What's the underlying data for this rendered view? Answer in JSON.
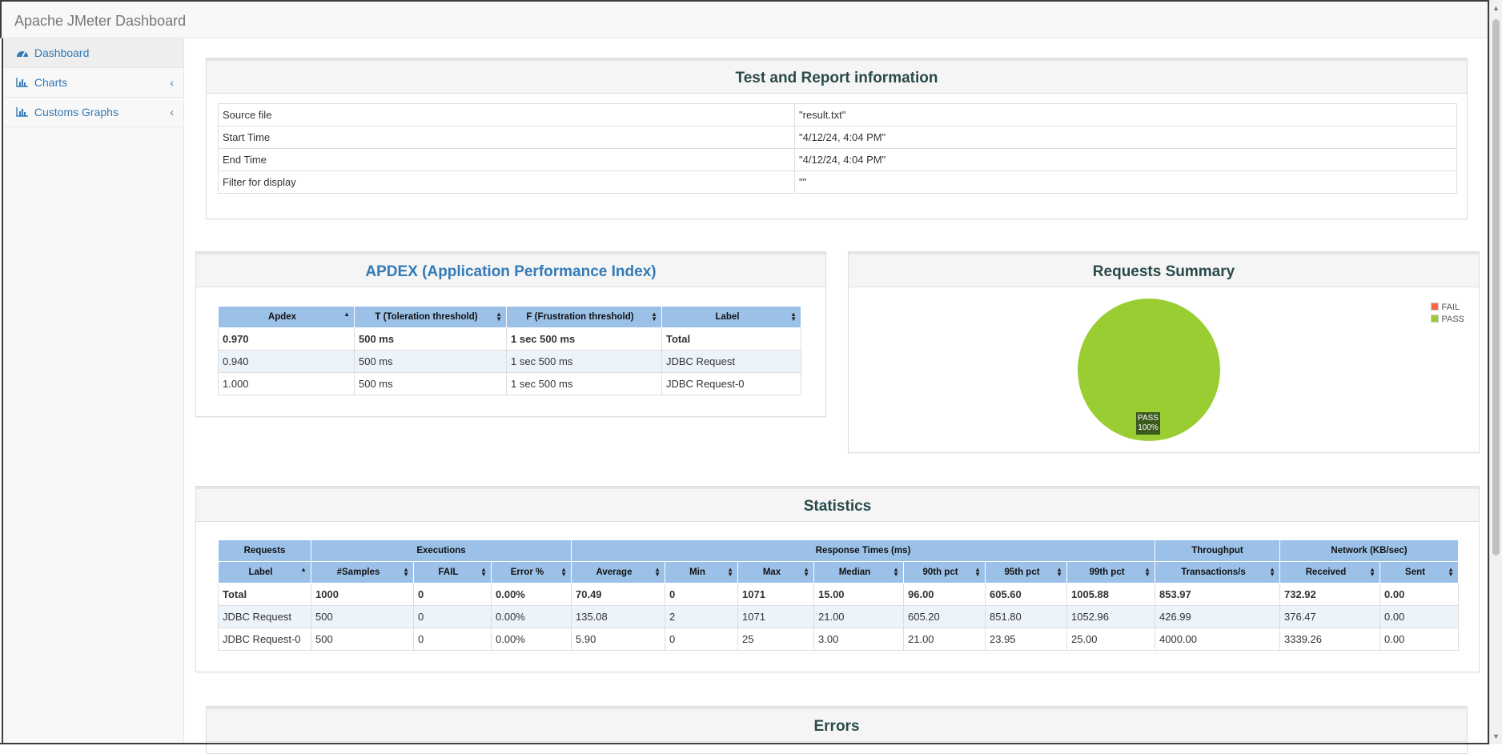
{
  "app": {
    "brand": "Apache JMeter Dashboard"
  },
  "sidebar": {
    "items": [
      {
        "label": "Dashboard",
        "icon": "dashboard-icon",
        "active": true
      },
      {
        "label": "Charts",
        "icon": "bar-chart-icon",
        "chevron": "‹"
      },
      {
        "label": "Customs Graphs",
        "icon": "bar-chart-icon",
        "chevron": "‹"
      }
    ]
  },
  "test_info": {
    "title": "Test and Report information",
    "rows": [
      {
        "key": "Source file",
        "value": "\"result.txt\""
      },
      {
        "key": "Start Time",
        "value": "\"4/12/24, 4:04 PM\""
      },
      {
        "key": "End Time",
        "value": "\"4/12/24, 4:04 PM\""
      },
      {
        "key": "Filter for display",
        "value": "\"\""
      }
    ]
  },
  "apdex": {
    "title": "APDEX (Application Performance Index)",
    "headers": [
      "Apdex",
      "T (Toleration threshold)",
      "F (Frustration threshold)",
      "Label"
    ],
    "rows": [
      [
        "0.970",
        "500 ms",
        "1 sec 500 ms",
        "Total"
      ],
      [
        "0.940",
        "500 ms",
        "1 sec 500 ms",
        "JDBC Request"
      ],
      [
        "1.000",
        "500 ms",
        "1 sec 500 ms",
        "JDBC Request-0"
      ]
    ]
  },
  "summary": {
    "title": "Requests Summary",
    "legend": [
      {
        "label": "FAIL",
        "color": "#ff6347"
      },
      {
        "label": "PASS",
        "color": "#9acd32"
      }
    ],
    "pie_label_name": "PASS",
    "pie_label_pct": "100%",
    "pass_fraction": 1.0
  },
  "statistics": {
    "title": "Statistics",
    "groups": [
      "Requests",
      "Executions",
      "Response Times (ms)",
      "Throughput",
      "Network (KB/sec)"
    ],
    "headers": [
      "Label",
      "#Samples",
      "FAIL",
      "Error %",
      "Average",
      "Min",
      "Max",
      "Median",
      "90th pct",
      "95th pct",
      "99th pct",
      "Transactions/s",
      "Received",
      "Sent"
    ],
    "rows": [
      [
        "Total",
        "1000",
        "0",
        "0.00%",
        "70.49",
        "0",
        "1071",
        "15.00",
        "96.00",
        "605.60",
        "1005.88",
        "853.97",
        "732.92",
        "0.00"
      ],
      [
        "JDBC Request",
        "500",
        "0",
        "0.00%",
        "135.08",
        "2",
        "1071",
        "21.00",
        "605.20",
        "851.80",
        "1052.96",
        "426.99",
        "376.47",
        "0.00"
      ],
      [
        "JDBC Request-0",
        "500",
        "0",
        "0.00%",
        "5.90",
        "0",
        "25",
        "3.00",
        "21.00",
        "23.95",
        "25.00",
        "4000.00",
        "3339.26",
        "0.00"
      ]
    ]
  },
  "errors": {
    "title": "Errors"
  },
  "colors": {
    "header_blue": "#9cc1e8",
    "link": "#337ab7",
    "pass_green": "#9acd32"
  }
}
